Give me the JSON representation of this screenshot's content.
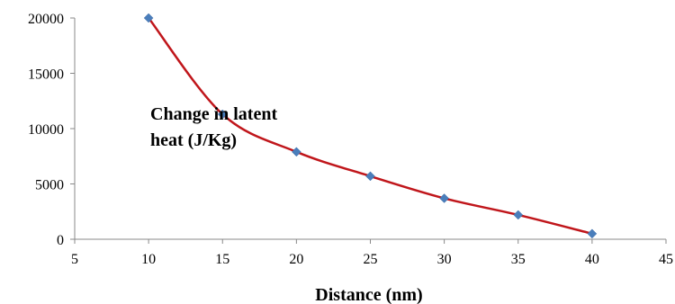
{
  "chart_data": {
    "type": "line",
    "title": "",
    "xlabel": "Distance (nm)",
    "ylabel": "",
    "annotation": [
      "Change in latent",
      "heat (J/Kg)"
    ],
    "xlim": [
      5,
      45
    ],
    "ylim": [
      0,
      20000
    ],
    "x_ticks": [
      5,
      10,
      15,
      20,
      25,
      30,
      35,
      40,
      45
    ],
    "y_ticks": [
      0,
      5000,
      10000,
      15000,
      20000
    ],
    "grid": false,
    "legend": "none",
    "smooth": true,
    "series": [
      {
        "x": [
          10,
          15,
          20,
          25,
          30,
          35,
          40
        ],
        "y": [
          20000,
          11300,
          7900,
          5700,
          3700,
          2200,
          500
        ],
        "line_color": "#c0161b",
        "marker": "diamond",
        "marker_color": "#4a7ebb"
      }
    ]
  }
}
